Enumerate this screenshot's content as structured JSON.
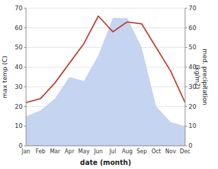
{
  "chart_data": {
    "type": "line",
    "xlabel": "date (month)",
    "ylabel": "max temp (C)",
    "y2label": "med. precipitation\n(kg/m2)",
    "categories": [
      "Jan",
      "Feb",
      "Mar",
      "Apr",
      "May",
      "Jun",
      "Jul",
      "Aug",
      "Sep",
      "Oct",
      "Nov",
      "Dec"
    ],
    "series": [
      {
        "type": "line",
        "color": "#c0392b",
        "values": [
          22,
          24,
          32,
          42,
          52,
          66,
          58,
          63,
          62,
          50,
          38,
          22
        ]
      },
      {
        "type": "area",
        "axis": "y2",
        "color": "#c5d4f0",
        "values": [
          15,
          18,
          24,
          35,
          33,
          46,
          65,
          65,
          50,
          20,
          12,
          10
        ]
      }
    ],
    "ylim": [
      0,
      70
    ],
    "yticks": [
      0,
      10,
      20,
      30,
      40,
      50,
      60,
      70
    ],
    "y2lim": [
      0,
      70
    ],
    "y2ticks": [
      0,
      10,
      20,
      30,
      40,
      50,
      60,
      70
    ],
    "grid": true
  }
}
